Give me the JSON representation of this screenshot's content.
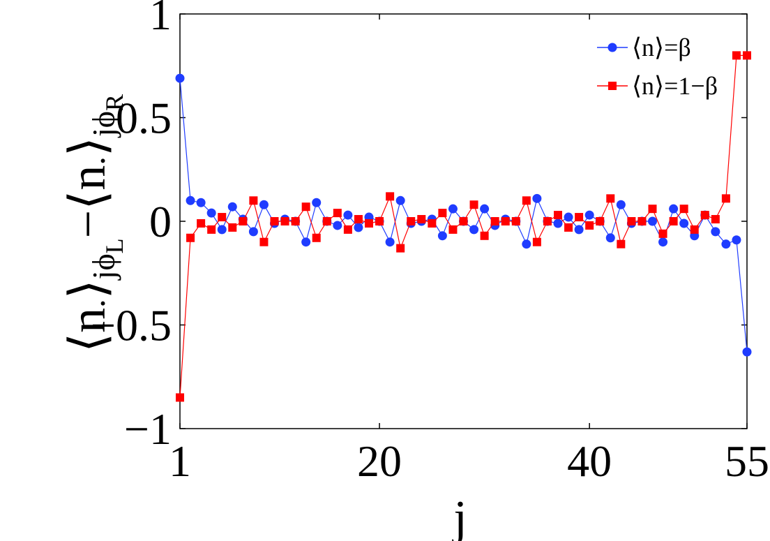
{
  "chart_data": {
    "type": "line",
    "xlabel": "j",
    "ylabel": {
      "bracket_open": "⟨",
      "n": "n",
      "dot": ".",
      "bracket_close": "⟩",
      "sub_j": "j",
      "sub_phi": "ϕ",
      "sub_L": "L",
      "minus": "−",
      "sub_R": "R"
    },
    "xlim": [
      1,
      55
    ],
    "ylim": [
      -1,
      1
    ],
    "xticks": [
      1,
      20,
      40,
      55
    ],
    "xtick_labels": [
      "1",
      "20",
      "40",
      "55"
    ],
    "yticks": [
      -1,
      -0.5,
      0,
      0.5,
      1
    ],
    "ytick_labels": [
      "−1",
      "−0.5",
      "0",
      "0.5",
      "1"
    ],
    "grid": false,
    "legend_position": "top-right",
    "x": [
      1,
      2,
      3,
      4,
      5,
      6,
      7,
      8,
      9,
      10,
      11,
      12,
      13,
      14,
      15,
      16,
      17,
      18,
      19,
      20,
      21,
      22,
      23,
      24,
      25,
      26,
      27,
      28,
      29,
      30,
      31,
      32,
      33,
      34,
      35,
      36,
      37,
      38,
      39,
      40,
      41,
      42,
      43,
      44,
      45,
      46,
      47,
      48,
      49,
      50,
      51,
      52,
      53,
      54,
      55
    ],
    "series": [
      {
        "name": "⟨n⟩=β",
        "color": "#1f3cff",
        "marker": "circle",
        "values": [
          0.69,
          0.1,
          0.09,
          0.04,
          -0.04,
          0.07,
          0.01,
          -0.05,
          0.08,
          -0.01,
          0.01,
          0.0,
          -0.1,
          0.09,
          0.0,
          -0.02,
          0.03,
          -0.03,
          0.02,
          0.0,
          -0.1,
          0.1,
          -0.01,
          0.0,
          0.01,
          -0.07,
          0.06,
          0.0,
          -0.04,
          0.06,
          -0.02,
          0.01,
          0.0,
          -0.11,
          0.11,
          0.0,
          -0.01,
          0.02,
          -0.04,
          0.03,
          0.0,
          -0.08,
          0.08,
          -0.01,
          0.0,
          0.0,
          -0.1,
          0.06,
          -0.01,
          -0.07,
          0.03,
          -0.05,
          -0.11,
          -0.09,
          -0.63
        ]
      },
      {
        "name": "⟨n⟩=1−β",
        "color": "#ff0000",
        "marker": "square",
        "values": [
          -0.85,
          -0.08,
          -0.01,
          -0.04,
          0.02,
          -0.03,
          0.0,
          0.1,
          -0.1,
          0.0,
          0.0,
          0.0,
          0.07,
          -0.08,
          0.0,
          0.04,
          -0.04,
          0.01,
          -0.01,
          0.0,
          0.12,
          -0.13,
          0.0,
          0.01,
          -0.01,
          0.04,
          -0.04,
          0.0,
          0.08,
          -0.07,
          0.0,
          0.0,
          0.0,
          0.1,
          -0.1,
          0.0,
          0.03,
          -0.03,
          0.02,
          -0.02,
          0.0,
          0.11,
          -0.11,
          0.0,
          0.0,
          0.06,
          -0.06,
          0.0,
          0.06,
          -0.04,
          0.03,
          0.01,
          0.11,
          0.8,
          0.8
        ]
      }
    ]
  }
}
